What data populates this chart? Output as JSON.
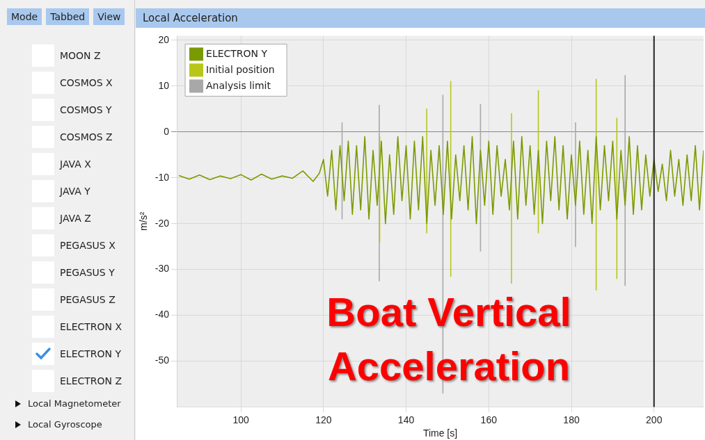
{
  "chart_data": [
    {
      "type": "other",
      "annotations": [
        "Mode",
        "Tabbed",
        "View",
        "MOON Z",
        "COSMOS X",
        "COSMOS Y",
        "COSMOS Z",
        "JAVA X",
        "JAVA Y",
        "JAVA Z",
        "PEGASUS X",
        "PEGASUS Y",
        "PEGASUS Z",
        "ELECTRON X",
        "ELECTRON Y",
        "ELECTRON Z",
        "Local Magnetometer",
        "Local Gyroscope"
      ]
    },
    {
      "type": "line",
      "title": "Local Acceleration",
      "xlabel": "Time [s]",
      "ylabel": "m/s²",
      "annotations": [
        "Boat Vertical Acceleration"
      ],
      "xlim": [
        84.5,
        212
      ],
      "xticks": [
        100,
        120,
        140,
        160,
        180,
        200
      ],
      "ylim": [
        -60,
        21
      ],
      "yticks": [
        20,
        10,
        0,
        -10,
        -20,
        -30,
        -40,
        -50
      ],
      "grid": true,
      "legend": "top left",
      "series": [
        {
          "name": "ELECTRON Y",
          "color": "#7a9a01",
          "x": [
            85,
            87.5,
            90,
            92.5,
            95,
            97.5,
            100,
            102.5,
            105,
            107.5,
            110,
            112.5,
            115,
            117.5,
            119,
            120,
            121,
            122,
            123,
            124,
            125,
            126,
            127,
            128,
            129,
            130,
            131,
            132,
            133,
            134,
            135,
            136,
            137,
            138,
            139,
            140,
            141,
            142,
            143,
            144,
            145,
            146,
            147,
            148,
            149,
            150,
            151,
            152,
            153,
            154,
            155,
            156,
            157,
            158,
            159,
            160,
            161,
            162,
            163,
            164,
            165,
            166,
            167,
            168,
            169,
            170,
            171,
            172,
            173,
            174,
            175,
            176,
            177,
            178,
            179,
            180,
            181,
            182,
            183,
            184,
            185,
            186,
            187,
            188,
            189,
            190,
            191,
            192,
            193,
            194,
            195,
            196,
            197,
            198,
            199,
            200,
            201,
            202,
            203,
            204,
            205,
            206,
            207,
            208,
            209,
            210,
            211,
            212
          ],
          "values": [
            -9.5,
            -10.3,
            -9.4,
            -10.4,
            -9.6,
            -10.2,
            -9.3,
            -10.5,
            -9.2,
            -10.3,
            -9.6,
            -10.1,
            -8.5,
            -10.8,
            -9,
            -6,
            -14,
            -4,
            -17,
            -3,
            -15,
            -2,
            -18,
            -3,
            -17,
            -1,
            -19,
            -4,
            -16,
            -2,
            -20,
            -5,
            -18,
            -1,
            -15,
            -3,
            -19,
            -2,
            -17,
            -1,
            -20,
            -4,
            -16,
            -3,
            -18,
            -2,
            -19,
            -5,
            -15,
            -3,
            -17,
            -1,
            -20,
            -4,
            -16,
            -2,
            -18,
            -3,
            -14,
            -6,
            -17,
            -2,
            -19,
            -1,
            -16,
            -3,
            -18,
            -4,
            -20,
            -2,
            -15,
            -1,
            -17,
            -3,
            -19,
            -5,
            -16,
            -2,
            -18,
            -4,
            -20,
            -1,
            -17,
            -3,
            -15,
            -2,
            -19,
            -4,
            -16,
            -1,
            -18,
            -3,
            -17,
            -5,
            -14,
            -6,
            -13,
            -7,
            -15,
            -4,
            -14,
            -6,
            -16,
            -5,
            -15,
            -3,
            -17,
            -4
          ]
        },
        {
          "name": "Initial position",
          "color": "#b8c61a",
          "x": [
            133.6,
            133.6,
            133.7,
            145,
            145,
            145.1,
            150.8,
            150.8,
            150.9,
            165.5,
            165.5,
            165.6,
            172,
            172,
            172.1,
            186,
            186,
            186.1,
            191,
            191
          ],
          "values": [
            -1,
            -24,
            null,
            5,
            -22,
            null,
            11,
            -31.5,
            null,
            4,
            -33,
            null,
            9,
            -22,
            null,
            11.5,
            -34.5,
            null,
            3,
            -32
          ]
        },
        {
          "name": "Analysis limit",
          "color": "#a8a8a8",
          "x": [
            124.5,
            124.5,
            124.6,
            133.5,
            133.5,
            133.6,
            148.9,
            148.9,
            149,
            158,
            158,
            158.1,
            181,
            181,
            181.1,
            193,
            193
          ],
          "values": [
            2,
            -19,
            null,
            5.8,
            -32.5,
            null,
            8,
            -57,
            null,
            6,
            -26,
            null,
            2,
            -25,
            null,
            12.3,
            -33.5
          ]
        }
      ],
      "ref_lines": [
        {
          "axis": "x",
          "value": 200,
          "color": "#222222"
        }
      ]
    }
  ]
}
